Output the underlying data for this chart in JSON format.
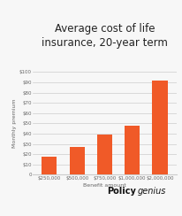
{
  "title": "Average cost of life\ninsurance, 20-year term",
  "categories": [
    "$250,000",
    "$500,000",
    "$750,000",
    "$1,000,000",
    "$2,000,000"
  ],
  "values": [
    18,
    27,
    39,
    48,
    92
  ],
  "bar_color": "#F05A28",
  "xlabel": "Benefit amount",
  "ylabel": "Monthly premium",
  "ylim": [
    0,
    100
  ],
  "yticks": [
    0,
    10,
    20,
    30,
    40,
    50,
    60,
    70,
    80,
    90,
    100
  ],
  "ytick_labels": [
    "0",
    "$10",
    "$20",
    "$30",
    "$40",
    "$50",
    "$60",
    "$70",
    "$80",
    "$90",
    "$100"
  ],
  "background_color": "#f7f7f7",
  "title_fontsize": 8.5,
  "axis_label_fontsize": 4.5,
  "tick_fontsize": 4.0,
  "watermark_bold": "Policy",
  "watermark_regular": "genius"
}
